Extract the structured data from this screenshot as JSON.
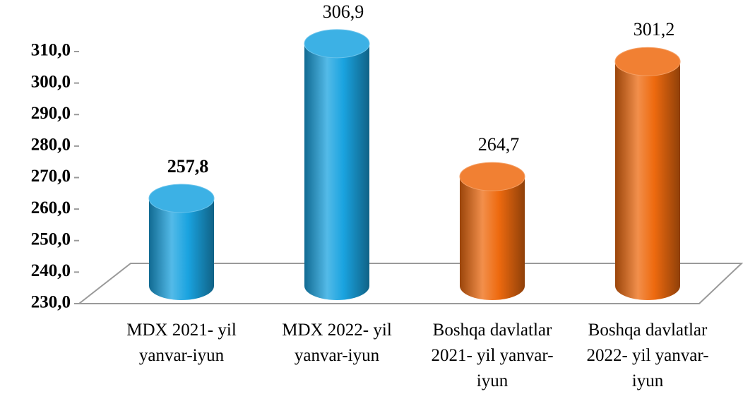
{
  "chart_data": {
    "type": "cylinder_bar",
    "categories": [
      "MDX 2021- yil yanvar-iyun",
      "MDX 2022- yil yanvar-iyun",
      "Boshqa davlatlar 2021- yil yanvar-iyun",
      "Boshqa davlatlar 2022- yil yanvar-iyun"
    ],
    "values": [
      257.8,
      306.9,
      264.7,
      301.2
    ],
    "value_labels": [
      "257,8",
      "306,9",
      "264,7",
      "301,2"
    ],
    "colors": [
      "#1aa3e0",
      "#1aa3e0",
      "#ee6a0f",
      "#ee6a0f"
    ],
    "ylim": [
      230,
      310
    ],
    "yticks": [
      {
        "value": 230,
        "label": "230,0"
      },
      {
        "value": 240,
        "label": "240,0"
      },
      {
        "value": 250,
        "label": "250,0"
      },
      {
        "value": 260,
        "label": "260,0"
      },
      {
        "value": 270,
        "label": "270,0"
      },
      {
        "value": 280,
        "label": "280,0"
      },
      {
        "value": 290,
        "label": "290,0"
      },
      {
        "value": 300,
        "label": "300,0"
      },
      {
        "value": 310,
        "label": "310,0"
      }
    ],
    "grid": false
  }
}
